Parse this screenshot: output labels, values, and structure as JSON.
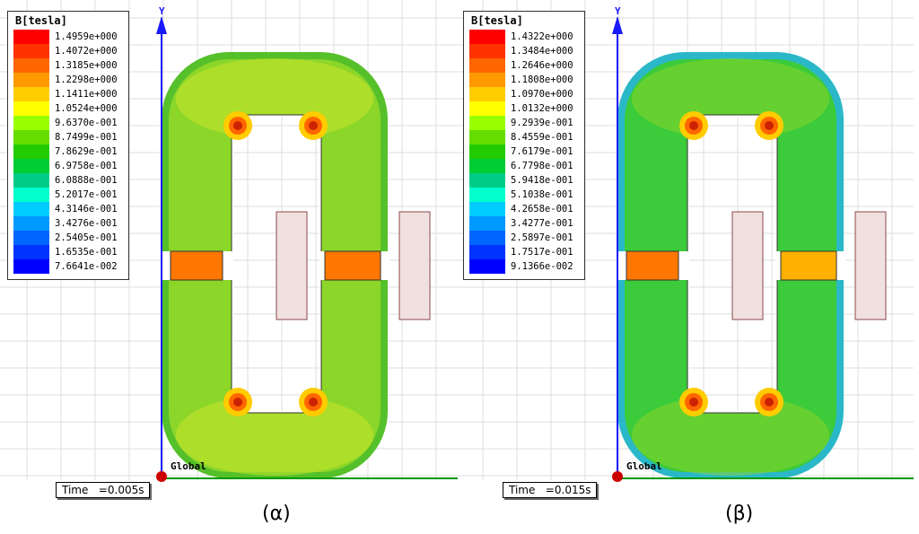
{
  "panels": [
    {
      "id": "alpha",
      "legend_title": "B[tesla]",
      "legend_values": [
        "1.4959e+000",
        "1.4072e+000",
        "1.3185e+000",
        "1.2298e+000",
        "1.1411e+000",
        "1.0524e+000",
        "9.6370e-001",
        "8.7499e-001",
        "7.8629e-001",
        "6.9758e-001",
        "6.0888e-001",
        "5.2017e-001",
        "4.3146e-001",
        "3.4276e-001",
        "2.5405e-001",
        "1.6535e-001",
        "7.6641e-002"
      ],
      "time_label": "Time   =0.005s",
      "caption": "(α)",
      "axis_y": "Y",
      "axis_origin": "Global"
    },
    {
      "id": "beta",
      "legend_title": "B[tesla]",
      "legend_values": [
        "1.4322e+000",
        "1.3484e+000",
        "1.2646e+000",
        "1.1808e+000",
        "1.0970e+000",
        "1.0132e+000",
        "9.2939e-001",
        "8.4559e-001",
        "7.6179e-001",
        "6.7798e-001",
        "5.9418e-001",
        "5.1038e-001",
        "4.2658e-001",
        "3.4277e-001",
        "2.5897e-001",
        "1.7517e-001",
        "9.1366e-002"
      ],
      "time_label": "Time   =0.015s",
      "caption": "(β)",
      "axis_y": "Y",
      "axis_origin": "Global"
    }
  ],
  "colors": {
    "legend_scale": [
      "#ff0000",
      "#ff3300",
      "#ff6600",
      "#ff9900",
      "#ffcc00",
      "#ffff00",
      "#99ff00",
      "#66dd00",
      "#22cc00",
      "#00cc33",
      "#00cc88",
      "#00ffcc",
      "#00ccff",
      "#0099ff",
      "#0066ff",
      "#0033ff",
      "#0000ff"
    ],
    "core_alpha": "#8cd62a",
    "core_beta": "#3ccb3a",
    "grid": "#dcdcdc",
    "coil": "#f1e0e0",
    "axis_y": "#1a1aff",
    "axis_x": "#009900"
  }
}
